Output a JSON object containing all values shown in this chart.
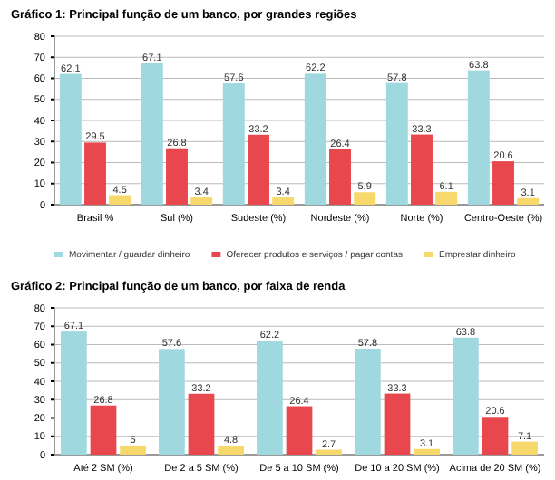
{
  "chart_data": [
    {
      "type": "bar",
      "title": "Gráfico 1: Principal função de um banco, por grandes regiões",
      "categories": [
        "Brasil %",
        "Sul (%)",
        "Sudeste (%)",
        "Nordeste (%)",
        "Norte (%)",
        "Centro-Oeste (%)"
      ],
      "series": [
        {
          "name": "Movimentar / guardar dinheiro",
          "color": "#9fd8df",
          "values": [
            62.1,
            67.1,
            57.6,
            62.2,
            57.8,
            63.8
          ]
        },
        {
          "name": "Oferecer produtos e serviços / pagar contas",
          "color": "#e8484d",
          "values": [
            29.5,
            26.8,
            33.2,
            26.4,
            33.3,
            20.6
          ]
        },
        {
          "name": "Emprestar dinheiro",
          "color": "#f6d96a",
          "values": [
            4.5,
            3.4,
            3.4,
            5.9,
            6.1,
            3.1
          ]
        }
      ],
      "ylim": [
        0,
        80
      ],
      "yticks": [
        0,
        10,
        20,
        30,
        40,
        50,
        60,
        70,
        80
      ],
      "grid": "y",
      "legend": "bottom",
      "data_labels": true
    },
    {
      "type": "bar",
      "title": "Gráfico 2: Principal função de um banco, por faixa de renda",
      "categories": [
        "Até 2 SM (%)",
        "De 2 a 5 SM (%)",
        "De 5 a 10 SM (%)",
        "De 10 a 20 SM (%)",
        "Acima de 20 SM (%)"
      ],
      "series": [
        {
          "color": "#9fd8df",
          "values": [
            67.1,
            57.6,
            62.2,
            57.8,
            63.8
          ]
        },
        {
          "color": "#e8484d",
          "values": [
            26.8,
            33.2,
            26.4,
            33.3,
            20.6
          ]
        },
        {
          "color": "#f6d96a",
          "values": [
            5,
            4.8,
            2.7,
            3.1,
            7.1
          ]
        }
      ],
      "ylim": [
        0,
        80
      ],
      "yticks": [
        0,
        10,
        20,
        30,
        40,
        50,
        60,
        70,
        80
      ],
      "grid": "y",
      "data_labels": true
    }
  ]
}
